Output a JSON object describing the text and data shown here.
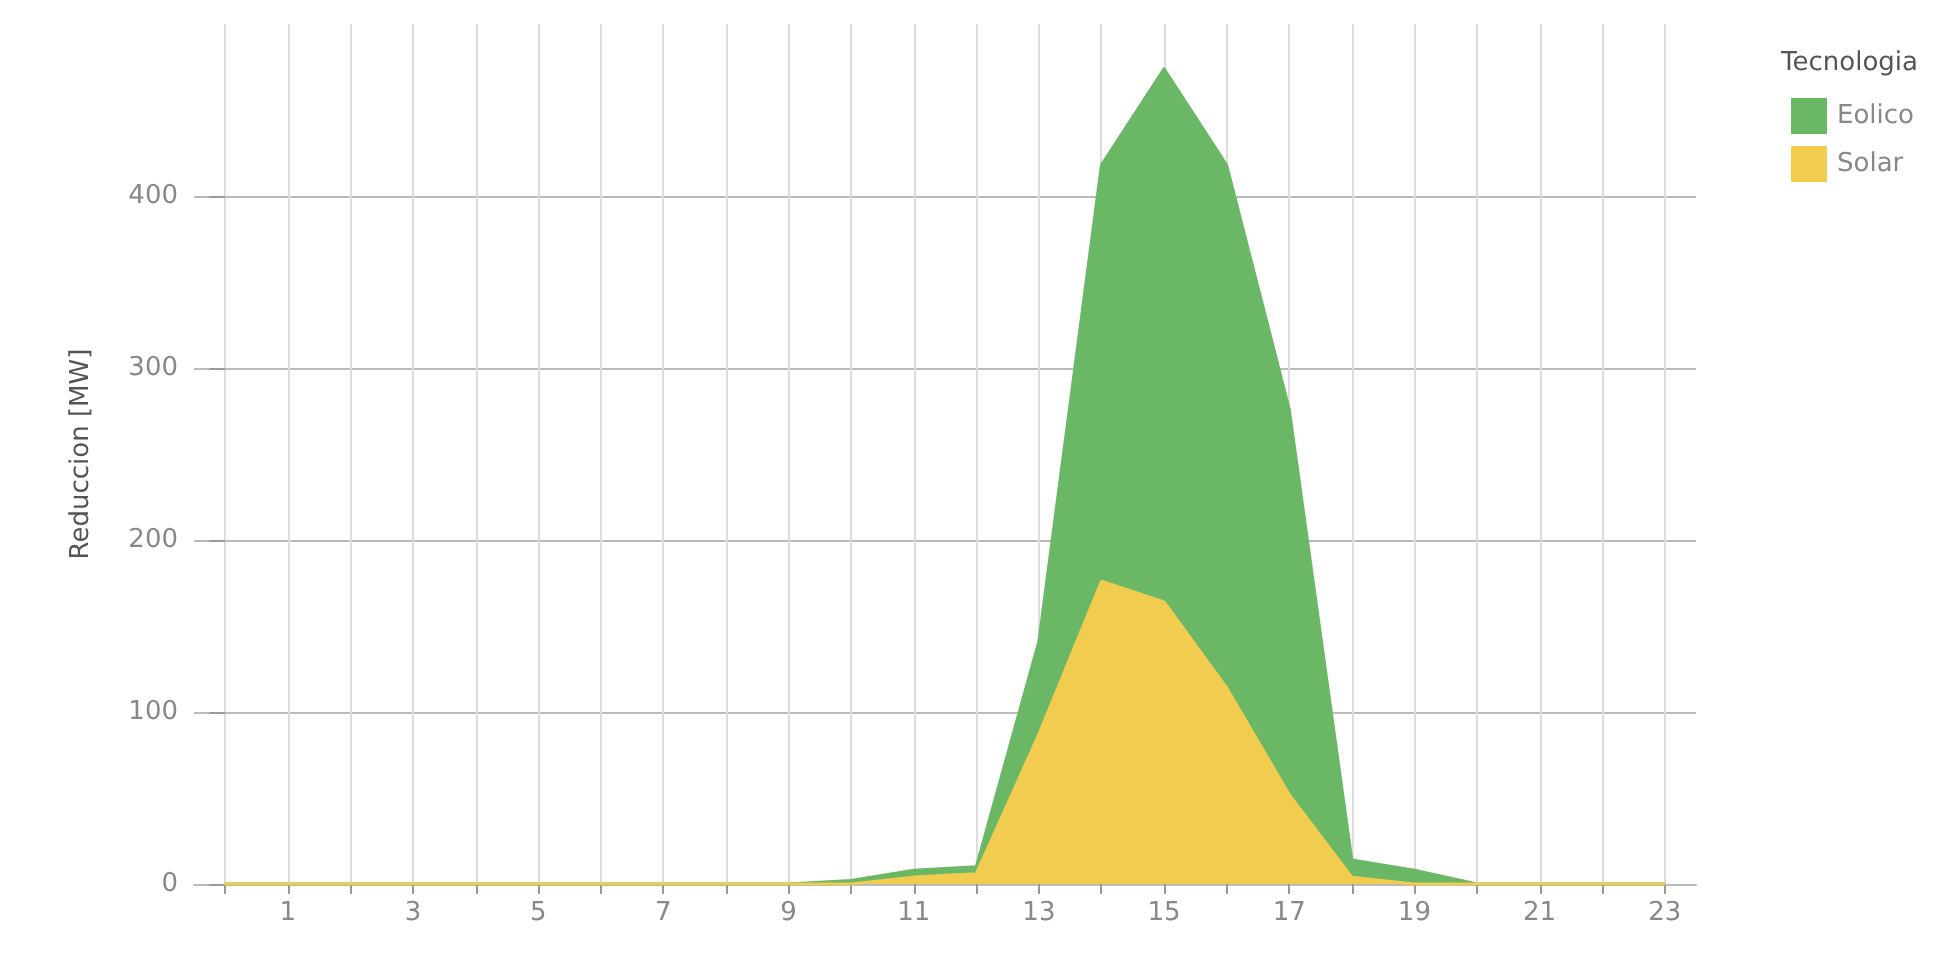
{
  "chart_data": {
    "type": "area",
    "ylabel": "Reduccion [MW]",
    "legend_title": "Tecnologia",
    "stacked": true,
    "x": [
      0,
      1,
      2,
      3,
      4,
      5,
      6,
      7,
      8,
      9,
      10,
      11,
      12,
      13,
      14,
      15,
      16,
      17,
      18,
      19,
      20,
      21,
      22,
      23
    ],
    "series": [
      {
        "name": "Solar",
        "color": "#f2cc4f",
        "values": [
          0,
          0,
          0,
          0,
          0,
          0,
          0,
          0,
          0,
          0,
          0,
          4,
          6,
          87,
          176,
          164,
          114,
          52,
          4,
          0,
          0,
          0,
          0,
          0
        ]
      },
      {
        "name": "Eolico",
        "color": "#6ab866",
        "values": [
          0,
          0,
          0,
          0,
          0,
          0,
          0,
          0,
          0,
          0,
          2,
          4,
          4,
          54,
          242,
          310,
          304,
          224,
          10,
          8,
          0,
          0,
          0,
          0
        ]
      }
    ],
    "xlim": [
      -0.5,
      23.5
    ],
    "ylim": [
      0,
      500
    ],
    "xticks": [
      {
        "value": 0,
        "label": null
      },
      {
        "value": 1,
        "label": "1"
      },
      {
        "value": 2,
        "label": null
      },
      {
        "value": 3,
        "label": "3"
      },
      {
        "value": 4,
        "label": null
      },
      {
        "value": 5,
        "label": "5"
      },
      {
        "value": 6,
        "label": null
      },
      {
        "value": 7,
        "label": "7"
      },
      {
        "value": 8,
        "label": null
      },
      {
        "value": 9,
        "label": "9"
      },
      {
        "value": 10,
        "label": null
      },
      {
        "value": 11,
        "label": "11"
      },
      {
        "value": 12,
        "label": null
      },
      {
        "value": 13,
        "label": "13"
      },
      {
        "value": 14,
        "label": null
      },
      {
        "value": 15,
        "label": "15"
      },
      {
        "value": 16,
        "label": null
      },
      {
        "value": 17,
        "label": "17"
      },
      {
        "value": 18,
        "label": null
      },
      {
        "value": 19,
        "label": "19"
      },
      {
        "value": 20,
        "label": null
      },
      {
        "value": 21,
        "label": "21"
      },
      {
        "value": 22,
        "label": null
      },
      {
        "value": 23,
        "label": "23"
      }
    ],
    "yticks": [
      0,
      100,
      200,
      300,
      400
    ],
    "grid": true,
    "legend": "top right",
    "marker": "none",
    "line_style": "solid"
  }
}
